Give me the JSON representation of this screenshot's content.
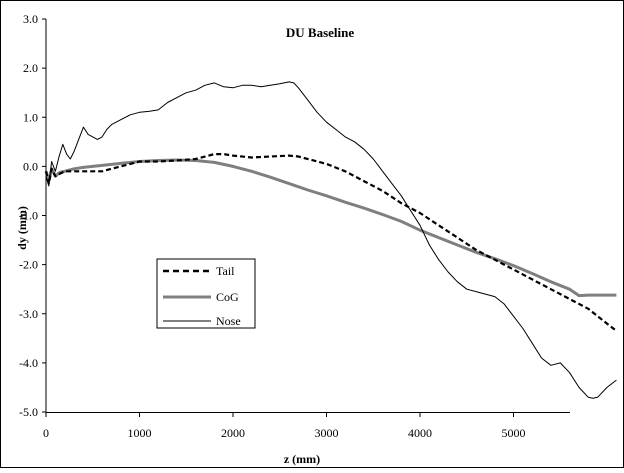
{
  "chart_data": {
    "type": "line",
    "title": "DU Baseline",
    "xlabel": "z (mm)",
    "ylabel": "dy (mm)",
    "xlim": [
      0,
      6000
    ],
    "ylim": [
      -5.0,
      3.0
    ],
    "x_ticks": [
      "0",
      "1000",
      "2000",
      "3000",
      "4000",
      "5000"
    ],
    "y_ticks": [
      "3.0",
      "2.0",
      "1.0",
      "0.0",
      "-1.0",
      "-2.0",
      "-3.0",
      "-4.0",
      "-5.0"
    ],
    "grid": false,
    "legend_position": "lower-left",
    "series": [
      {
        "name": "Tail",
        "style": "dashed",
        "color": "#000000",
        "x": [
          0,
          30,
          60,
          100,
          150,
          200,
          300,
          400,
          500,
          600,
          700,
          800,
          900,
          1000,
          1200,
          1400,
          1600,
          1800,
          1900,
          2000,
          2200,
          2400,
          2600,
          2700,
          2800,
          3000,
          3200,
          3400,
          3600,
          3800,
          4000,
          4200,
          4400,
          4600,
          4800,
          5000,
          5200,
          5400,
          5600,
          5800,
          6000,
          6100
        ],
        "y": [
          -0.1,
          -0.35,
          -0.05,
          -0.2,
          -0.15,
          -0.1,
          -0.1,
          -0.1,
          -0.1,
          -0.1,
          -0.05,
          0.0,
          0.05,
          0.1,
          0.1,
          0.12,
          0.15,
          0.25,
          0.25,
          0.22,
          0.18,
          0.2,
          0.22,
          0.2,
          0.15,
          0.05,
          -0.1,
          -0.3,
          -0.5,
          -0.75,
          -0.95,
          -1.2,
          -1.45,
          -1.7,
          -1.9,
          -2.1,
          -2.3,
          -2.5,
          -2.7,
          -2.9,
          -3.2,
          -3.35
        ]
      },
      {
        "name": "CoG",
        "style": "solid-thick-gray",
        "color": "#7f7f7f",
        "x": [
          0,
          30,
          60,
          100,
          150,
          200,
          300,
          400,
          600,
          800,
          1000,
          1200,
          1400,
          1600,
          1800,
          2000,
          2200,
          2400,
          2600,
          2800,
          3000,
          3200,
          3400,
          3600,
          3800,
          4000,
          4200,
          4400,
          4600,
          4800,
          5000,
          5200,
          5400,
          5600,
          5700,
          5800,
          6000,
          6100
        ],
        "y": [
          -0.1,
          -0.3,
          -0.05,
          -0.2,
          -0.12,
          -0.1,
          -0.05,
          -0.02,
          0.02,
          0.06,
          0.1,
          0.12,
          0.13,
          0.12,
          0.08,
          0.0,
          -0.1,
          -0.22,
          -0.35,
          -0.48,
          -0.6,
          -0.73,
          -0.85,
          -0.98,
          -1.12,
          -1.3,
          -1.45,
          -1.6,
          -1.75,
          -1.88,
          -2.02,
          -2.18,
          -2.35,
          -2.5,
          -2.63,
          -2.62,
          -2.62,
          -2.62
        ]
      },
      {
        "name": "Nose",
        "style": "solid-thin",
        "color": "#000000",
        "x": [
          0,
          30,
          60,
          100,
          140,
          180,
          220,
          260,
          300,
          350,
          400,
          450,
          500,
          550,
          600,
          650,
          700,
          750,
          800,
          850,
          900,
          1000,
          1100,
          1200,
          1300,
          1400,
          1500,
          1600,
          1700,
          1800,
          1900,
          2000,
          2100,
          2200,
          2300,
          2400,
          2500,
          2600,
          2650,
          2700,
          2800,
          2900,
          3000,
          3100,
          3200,
          3300,
          3400,
          3500,
          3600,
          3700,
          3800,
          3900,
          4000,
          4100,
          4200,
          4300,
          4400,
          4500,
          4600,
          4700,
          4800,
          4900,
          5000,
          5100,
          5200,
          5300,
          5400,
          5500,
          5600,
          5700,
          5800,
          5850,
          5900,
          6000,
          6100
        ],
        "y": [
          -0.2,
          -0.4,
          0.1,
          -0.1,
          0.2,
          0.45,
          0.25,
          0.15,
          0.3,
          0.55,
          0.8,
          0.65,
          0.6,
          0.55,
          0.6,
          0.75,
          0.85,
          0.9,
          0.95,
          1.0,
          1.05,
          1.1,
          1.12,
          1.15,
          1.3,
          1.4,
          1.5,
          1.55,
          1.65,
          1.7,
          1.62,
          1.6,
          1.65,
          1.65,
          1.62,
          1.65,
          1.68,
          1.72,
          1.7,
          1.6,
          1.35,
          1.1,
          0.9,
          0.75,
          0.6,
          0.5,
          0.35,
          0.15,
          -0.1,
          -0.35,
          -0.6,
          -0.9,
          -1.2,
          -1.6,
          -1.9,
          -2.15,
          -2.35,
          -2.5,
          -2.55,
          -2.6,
          -2.65,
          -2.8,
          -3.05,
          -3.3,
          -3.6,
          -3.9,
          -4.05,
          -4.0,
          -4.2,
          -4.5,
          -4.7,
          -4.72,
          -4.7,
          -4.5,
          -4.35
        ]
      }
    ]
  }
}
